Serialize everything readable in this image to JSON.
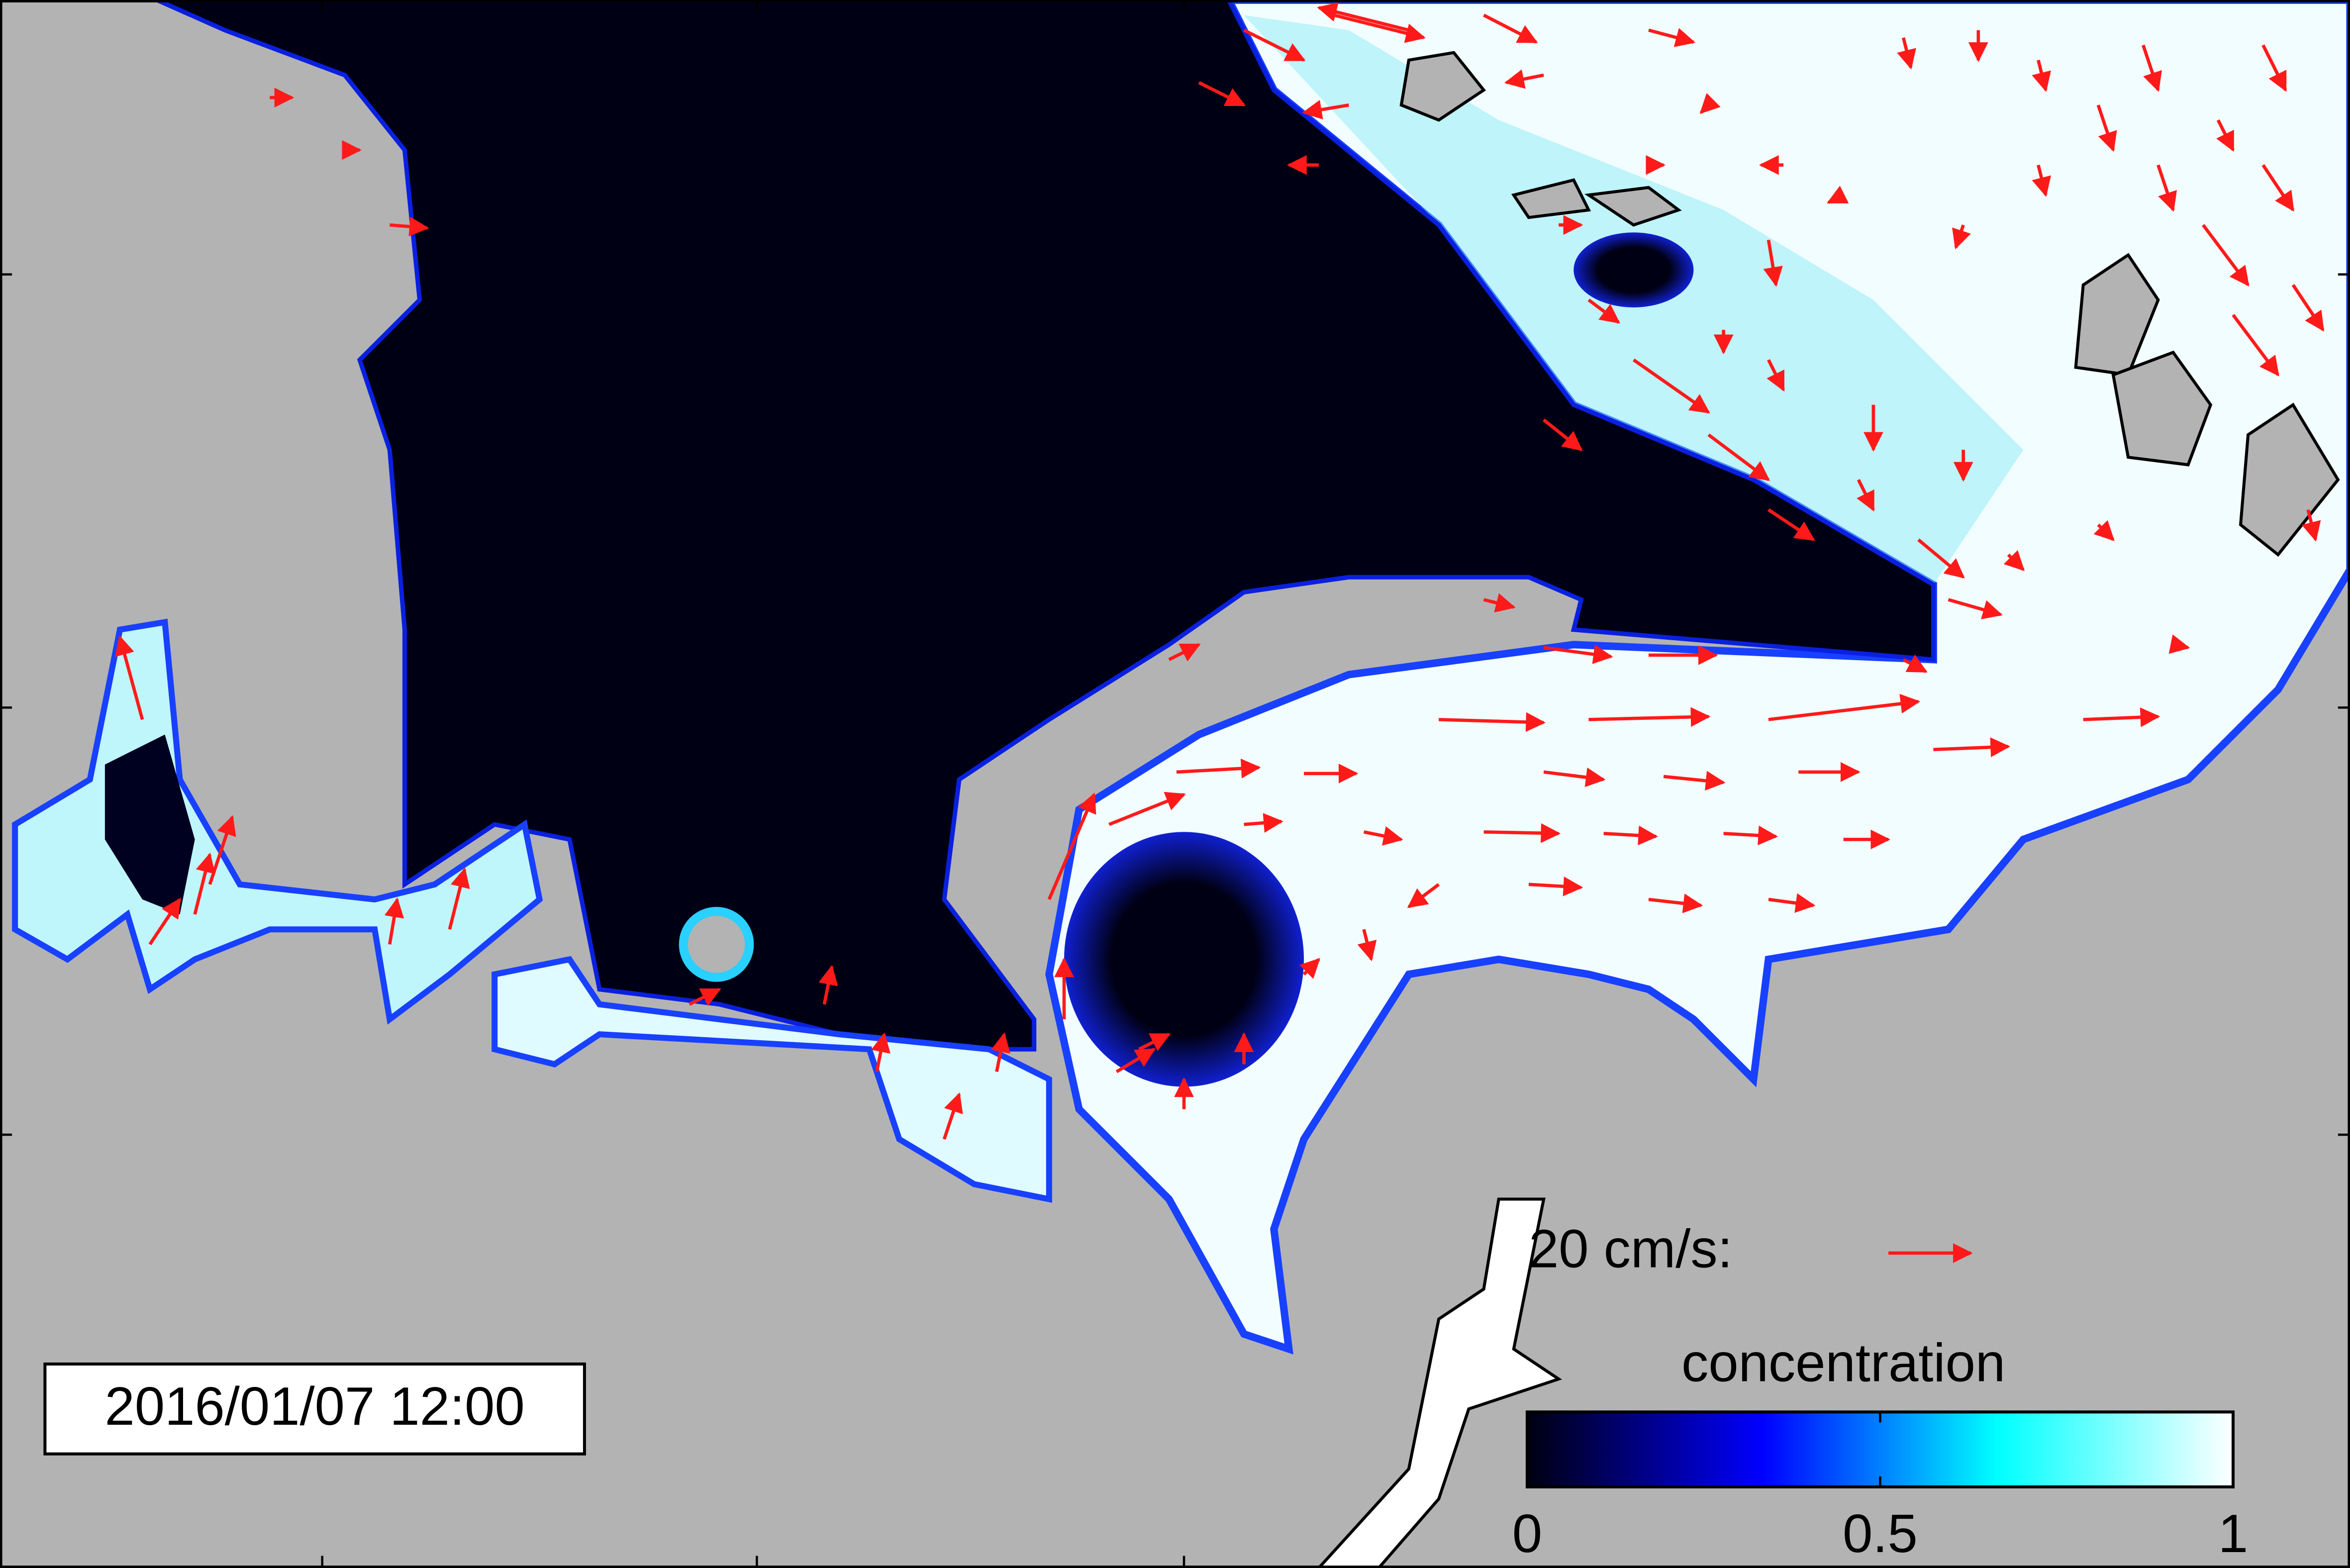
{
  "timestamp": "2016/01/07 12:00",
  "vector_legend": {
    "label": "20 cm/s:"
  },
  "colorbar": {
    "title": "concentration",
    "lim": [
      0,
      1
    ],
    "ticks": [
      0,
      0.5,
      1
    ],
    "colors": [
      "#000010",
      "#0000ff",
      "#00ffff",
      "#ffffff"
    ]
  }
}
